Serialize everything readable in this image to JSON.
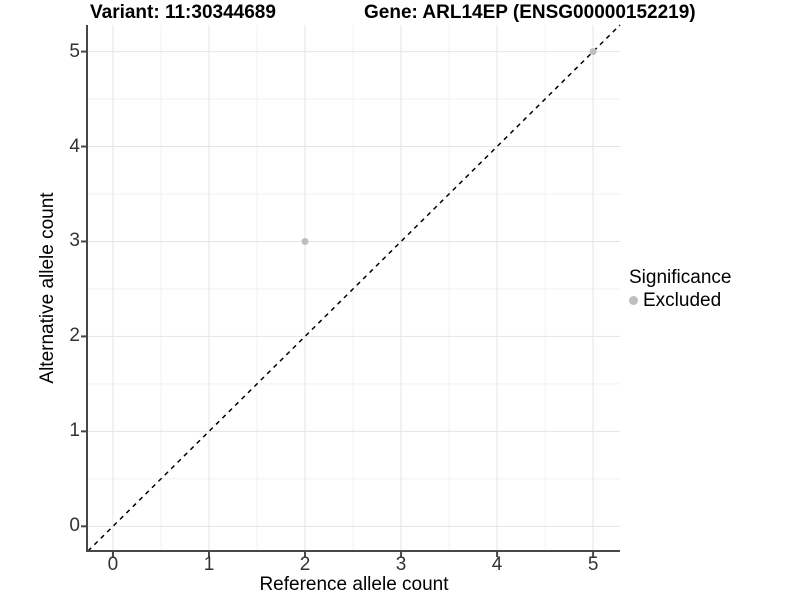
{
  "header": {
    "title_left": "Variant: 11:30344689",
    "title_right": "Gene: ARL14EP (ENSG00000152219)"
  },
  "chart_data": {
    "type": "scatter",
    "title": "Variant: 11:30344689 — Gene: ARL14EP (ENSG00000152219)",
    "xlabel": "Reference allele count",
    "ylabel": "Alternative allele count",
    "xticks": [
      0,
      1,
      2,
      3,
      4,
      5
    ],
    "yticks": [
      0,
      1,
      2,
      3,
      4,
      5
    ],
    "xlim": [
      -0.26,
      5.28
    ],
    "ylim": [
      -0.26,
      5.28
    ],
    "minor_gridlines_x": [
      0.5,
      1.5,
      2.5,
      3.5,
      4.5
    ],
    "minor_gridlines_y": [
      0.5,
      1.5,
      2.5,
      3.5,
      4.5
    ],
    "grid": true,
    "identity_line": {
      "style": "dashed",
      "slope": 1,
      "intercept": 0,
      "color": "#000000"
    },
    "series": [
      {
        "name": "Excluded",
        "color": "#bebebe",
        "points": [
          {
            "x": 2,
            "y": 3
          },
          {
            "x": 5,
            "y": 5
          }
        ]
      }
    ],
    "legend": {
      "title": "Significance",
      "position": "right",
      "items": [
        {
          "label": "Excluded",
          "color": "#bebebe"
        }
      ]
    },
    "colors": {
      "background": "#ffffff",
      "grid_major": "#e4e4e4",
      "grid_minor": "#f2f2f2",
      "axis_line": "#474747",
      "tick_mark": "#474747",
      "tick_text": "#333333",
      "point": "#bebebe"
    }
  }
}
